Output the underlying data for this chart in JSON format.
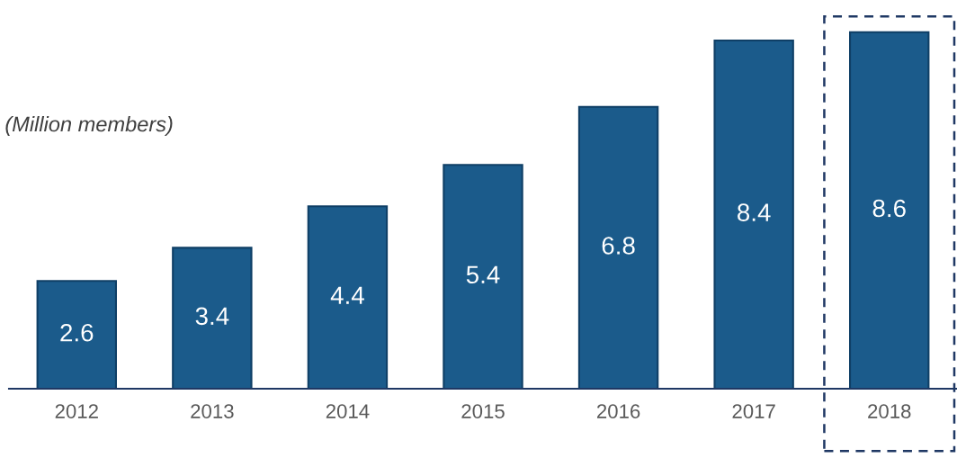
{
  "chart_data": {
    "type": "bar",
    "subtitle": "(Million members)",
    "categories": [
      "2012",
      "2013",
      "2014",
      "2015",
      "2016",
      "2017",
      "2018"
    ],
    "values": [
      2.6,
      3.4,
      4.4,
      5.4,
      6.8,
      8.4,
      8.6
    ],
    "color": "#1b5b8b",
    "data_labels": true,
    "grid": false,
    "legend": false
  }
}
